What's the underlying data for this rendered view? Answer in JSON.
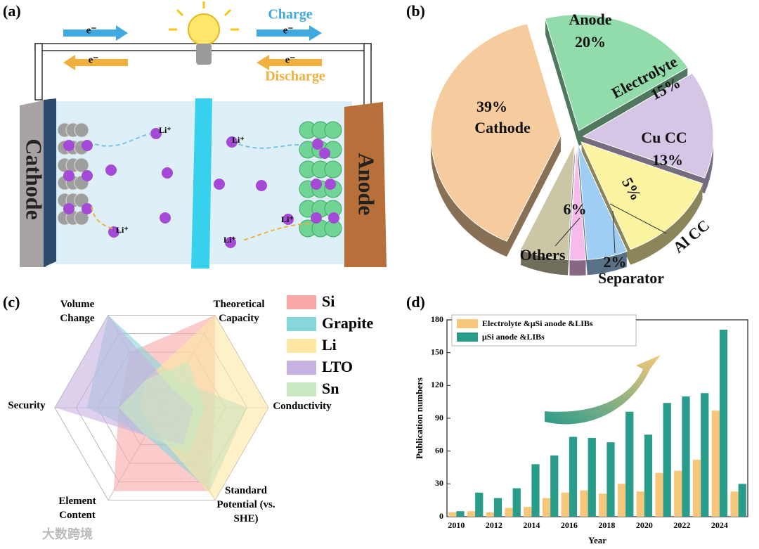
{
  "diagram": {
    "panel_label": "(a)",
    "charge": "Charge",
    "discharge": "Discharge",
    "electron": "e⁻",
    "cathode": "Cathode",
    "anode": "Anode",
    "li_ion": "Li⁺"
  },
  "chart_data": [
    {
      "type": "pie",
      "panel_label": "(b)",
      "categories": [
        "Anode",
        "Electrolyte",
        "Cu CC",
        "Al CC",
        "Separator",
        "Others",
        "Cathode"
      ],
      "values": [
        20,
        15,
        13,
        5,
        2,
        6,
        39
      ],
      "value_labels": [
        "20%",
        "15%",
        "13%",
        "5%",
        "2%",
        "6%",
        "39%"
      ],
      "colors": [
        "#92dbab",
        "#d5c6e6",
        "#fdf4a2",
        "#a0cdf3",
        "#f6bbea",
        "#cbc6a6",
        "#f6cb9d"
      ]
    },
    {
      "type": "radar",
      "panel_label": "(c)",
      "axes": [
        "Theoretical Capacity",
        "Conductivity",
        "Standard Potential (vs. SHE)",
        "Element Content",
        "Security",
        "Volume Change"
      ],
      "rlim": [
        0,
        5
      ],
      "rticks": [
        1,
        2,
        3,
        4,
        5
      ],
      "series": [
        {
          "name": "Si",
          "color": "#f9a6a6",
          "values": [
            5,
            2.5,
            4.5,
            4.5,
            2,
            3
          ]
        },
        {
          "name": "Grapite",
          "color": "#86d6db",
          "values": [
            1.5,
            4,
            4.5,
            1.5,
            3.5,
            5
          ]
        },
        {
          "name": "Li",
          "color": "#fde7a2",
          "values": [
            5,
            5,
            5,
            1,
            1,
            1.5
          ]
        },
        {
          "name": "LTO",
          "color": "#c7b1e0",
          "values": [
            1,
            1.5,
            2,
            1.5,
            5,
            5
          ]
        },
        {
          "name": "Sn",
          "color": "#c8e9c1",
          "values": [
            2.5,
            2,
            2.5,
            1.5,
            2,
            1.5
          ]
        }
      ]
    },
    {
      "type": "bar",
      "panel_label": "(d)",
      "x_label": "Year",
      "y_label": "Publication numbers",
      "categories": [
        "2010",
        null,
        "2012",
        null,
        "2014",
        null,
        "2016",
        null,
        "2018",
        null,
        "2020",
        null,
        "2022",
        null,
        "2024",
        null
      ],
      "series": [
        {
          "name": "Electrolyte &μSi anode &LIBs",
          "color": "#f6c77a",
          "values": [
            4,
            5,
            4,
            8,
            9,
            17,
            22,
            24,
            21,
            30,
            23,
            40,
            42,
            52,
            97,
            23
          ]
        },
        {
          "name": "μSi anode &LIBs",
          "color": "#2a9c8a",
          "values": [
            5,
            22,
            17,
            26,
            48,
            56,
            73,
            72,
            68,
            96,
            75,
            104,
            110,
            113,
            171,
            30
          ]
        }
      ],
      "ylim": [
        0,
        180
      ],
      "yticks": [
        0,
        30,
        60,
        90,
        120,
        150,
        180
      ]
    }
  ],
  "watermark": "大数跨境"
}
